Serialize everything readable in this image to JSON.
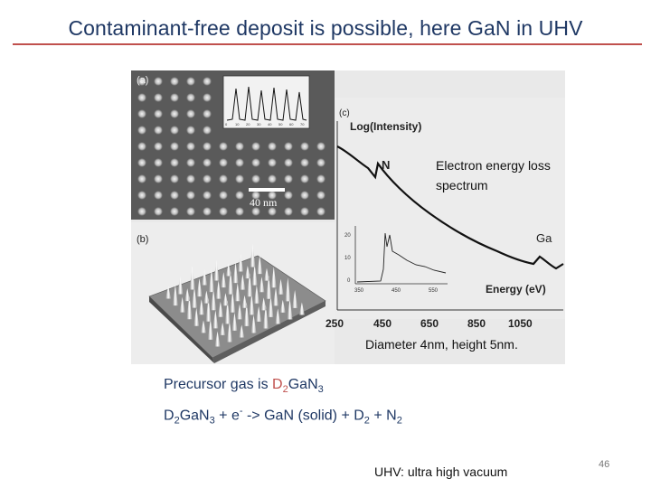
{
  "slide": {
    "title": "Contaminant-free deposit is possible, here GaN in UHV",
    "page_number": "46"
  },
  "figure": {
    "panel_a_label": "(a)",
    "panel_b_label": "(b)",
    "panel_c_label": "(c)",
    "scale_bar_label": "40 nm",
    "y_axis_label": "Log(Intensity)",
    "x_axis_label": "Energy (eV)",
    "peak_n_label": "N",
    "peak_ga_label": "Ga",
    "x_ticks": [
      "250",
      "450",
      "650",
      "850",
      "1050"
    ],
    "inset_y_ticks": [
      "20",
      "10",
      "0"
    ],
    "inset_x_ticks": [
      "350",
      "450",
      "550"
    ],
    "profile_ticks": [
      "0",
      "10",
      "20",
      "30",
      "40",
      "50",
      "60",
      "70"
    ],
    "eels_label": "Electron energy loss spectrum",
    "diameter_label": "Diameter 4nm, height 5nm."
  },
  "precursor": {
    "line1_prefix": "Precursor gas is ",
    "d": "D",
    "d_sub": "2",
    "ga_n": "GaN",
    "n_sub": "3",
    "line2_d": "D",
    "line2_d_sub": "2",
    "line2_gan": "GaN",
    "line2_n_sub": "3",
    "line2_plus_e": " + e",
    "line2_e_sup": "-",
    "line2_arrow": " -> GaN (solid) + D",
    "line2_d2_sub": "2",
    "line2_plus_n": " + N",
    "line2_n2_sub": "2"
  },
  "footnote": "UHV: ultra high vacuum"
}
